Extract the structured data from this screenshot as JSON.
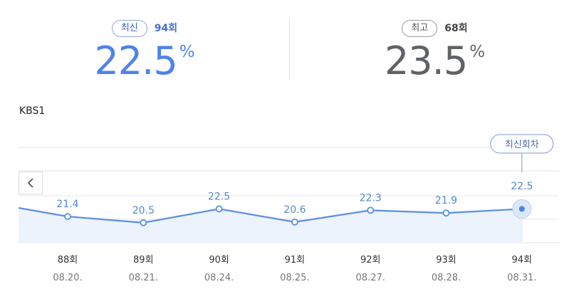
{
  "summary": {
    "latest": {
      "badge": "최신",
      "episode": "94회",
      "value": "22.5",
      "unit": "%"
    },
    "best": {
      "badge": "최고",
      "episode": "68회",
      "value": "23.5",
      "unit": "%"
    }
  },
  "station": "KBS1",
  "prev_icon": "chevron-left-icon",
  "colors": {
    "accent": "#4f83ea",
    "line": "#5b8ee6",
    "fill": "#edf3fc",
    "text_dark": "#606268"
  },
  "chart_data": {
    "type": "area",
    "x_labels": [
      "88회",
      "89회",
      "90회",
      "91회",
      "92회",
      "93회",
      "94회"
    ],
    "dates": [
      "08.20.",
      "08.21.",
      "08.24.",
      "08.25.",
      "08.27.",
      "08.28.",
      "08.31."
    ],
    "values": [
      21.4,
      20.5,
      22.5,
      20.6,
      22.3,
      21.9,
      22.5
    ],
    "value_labels": [
      "21.4",
      "20.5",
      "22.5",
      "20.6",
      "22.3",
      "21.9",
      "22.5"
    ],
    "highlight_index": 6,
    "highlight_badge": "최신회차",
    "grid": true,
    "ylim": [
      17.6,
      28.0
    ]
  }
}
